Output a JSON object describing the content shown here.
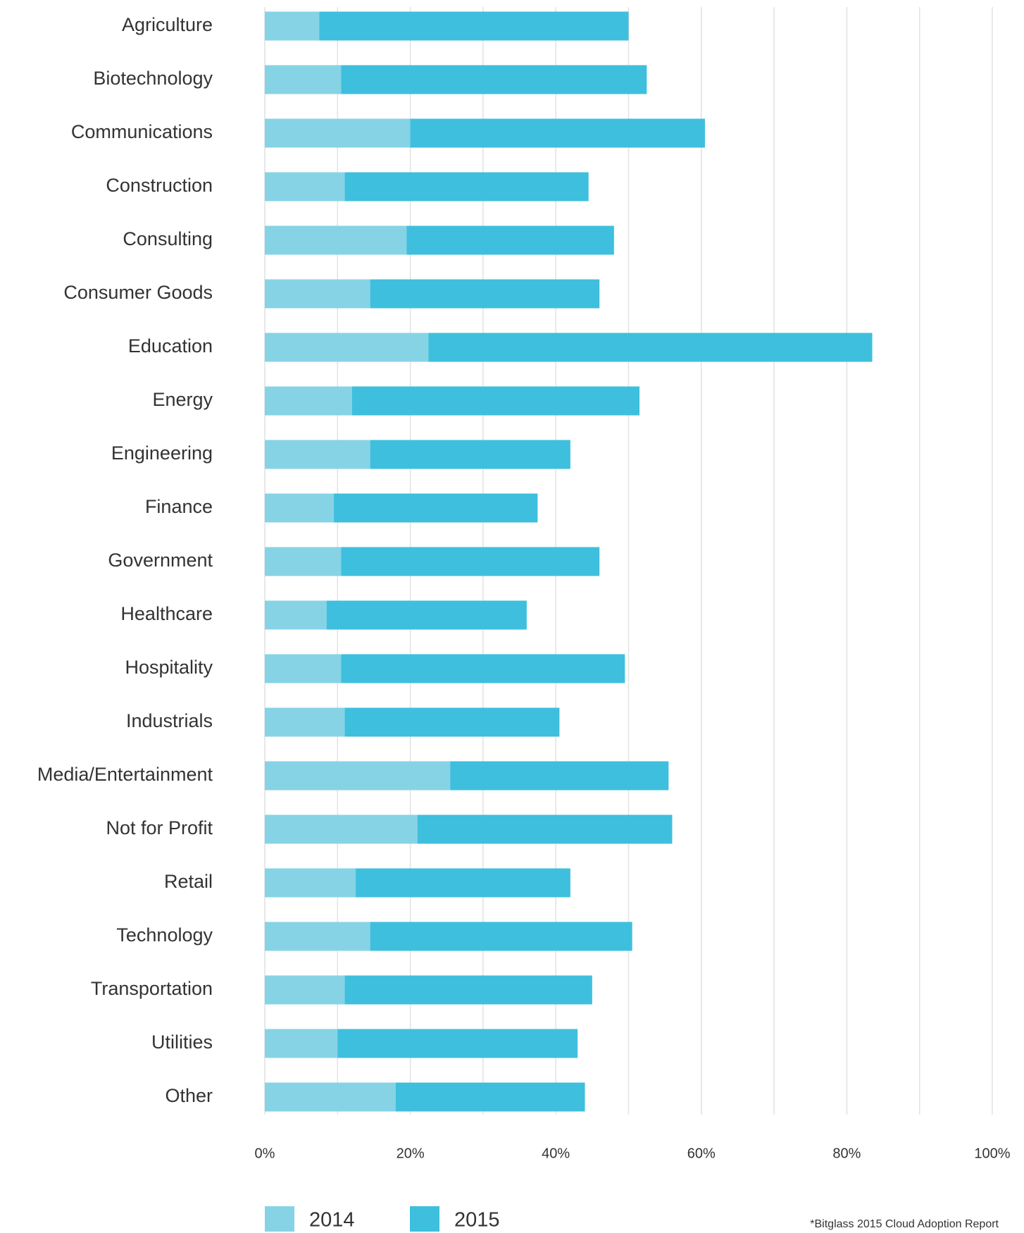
{
  "chart_data": {
    "type": "bar",
    "orientation": "horizontal",
    "barmode": "overlay",
    "categories": [
      "Agriculture",
      "Biotechnology",
      "Communications",
      "Construction",
      "Consulting",
      "Consumer Goods",
      "Education",
      "Energy",
      "Engineering",
      "Finance",
      "Government",
      "Healthcare",
      "Hospitality",
      "Industrials",
      "Media/Entertainment",
      "Not for Profit",
      "Retail",
      "Technology",
      "Transportation",
      "Utilities",
      "Other"
    ],
    "series": [
      {
        "name": "2014",
        "color": "#86d3e6",
        "values": [
          7.5,
          10.5,
          20,
          11,
          19.5,
          14.5,
          22.5,
          12,
          14.5,
          9.5,
          10.5,
          8.5,
          10.5,
          11,
          25.5,
          21,
          12.5,
          14.5,
          11,
          10,
          18
        ]
      },
      {
        "name": "2015",
        "color": "#3ebfdd",
        "values": [
          50,
          52.5,
          60.5,
          44.5,
          48,
          46,
          83.5,
          51.5,
          42,
          37.5,
          46,
          36,
          49.5,
          40.5,
          55.5,
          56,
          42,
          50.5,
          45,
          43,
          44
        ]
      }
    ],
    "xlim": [
      0,
      100
    ],
    "xticks": [
      {
        "value": 0,
        "label": "0%"
      },
      {
        "value": 20,
        "label": "20%"
      },
      {
        "value": 40,
        "label": "40%"
      },
      {
        "value": 60,
        "label": "60%"
      },
      {
        "value": 80,
        "label": "80%"
      },
      {
        "value": 100,
        "label": "100%"
      }
    ],
    "minor_xticks": [
      10,
      30,
      50,
      70,
      90
    ],
    "grid": true,
    "legend": "bottom-left",
    "source": "*Bitglass 2015 Cloud Adoption Report"
  }
}
